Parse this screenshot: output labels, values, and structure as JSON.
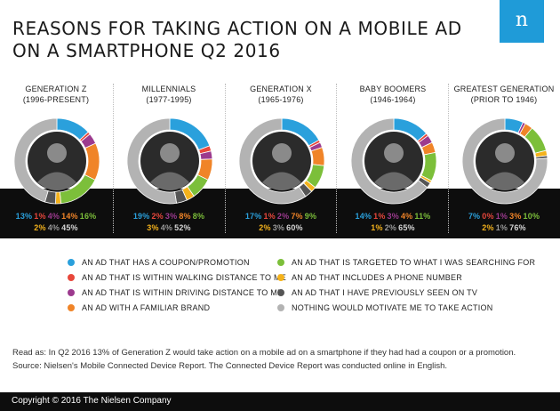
{
  "title": {
    "line1": "REASONS FOR TAKING ACTION ON A MOBILE AD",
    "line2": "ON A SMARTPHONE Q2 2016"
  },
  "logo_letter": "n",
  "colors": {
    "coupon": "#2aa0dc",
    "walking": "#e8473b",
    "driving": "#9c3a8e",
    "brand": "#f08428",
    "targeted": "#7cbf3a",
    "phone": "#f4b21c",
    "seen_tv": "#555555",
    "nothing": "#b3b3b3",
    "band": "#0d0d0d",
    "logo": "#1f9bd8"
  },
  "chart_data": {
    "type": "pie",
    "variant": "donut",
    "series_order": [
      "coupon",
      "walking",
      "driving",
      "brand",
      "targeted",
      "phone",
      "seen_tv",
      "nothing"
    ],
    "groups": [
      {
        "name": "GENERATION Z",
        "years": "(1996-PRESENT)",
        "values": {
          "coupon": 13,
          "walking": 1,
          "driving": 4,
          "brand": 14,
          "targeted": 16,
          "phone": 2,
          "seen_tv": 4,
          "nothing": 45
        },
        "labels": {
          "coupon": "13%",
          "walking": "1%",
          "driving": "4%",
          "brand": "14%",
          "targeted": "16%",
          "phone": "2%",
          "seen_tv": "4%",
          "nothing": "45%"
        }
      },
      {
        "name": "MILLENNIALS",
        "years": "(1977-1995)",
        "values": {
          "coupon": 19,
          "walking": 2,
          "driving": 3,
          "brand": 8,
          "targeted": 8,
          "phone": 3,
          "seen_tv": 4,
          "nothing": 52
        },
        "labels": {
          "coupon": "19%",
          "walking": "2%",
          "driving": "3%",
          "brand": "8%",
          "targeted": "8%",
          "phone": "3%",
          "seen_tv": "4%",
          "nothing": "52%"
        }
      },
      {
        "name": "GENERATION X",
        "years": "(1965-1976)",
        "values": {
          "coupon": 17,
          "walking": 1,
          "driving": 2,
          "brand": 7,
          "targeted": 9,
          "phone": 2,
          "seen_tv": 3,
          "nothing": 60
        },
        "labels": {
          "coupon": "17%",
          "walking": "1%",
          "driving": "2%",
          "brand": "7%",
          "targeted": "9%",
          "phone": "2%",
          "seen_tv": "3%",
          "nothing": "60%"
        }
      },
      {
        "name": "BABY BOOMERS",
        "years": "(1946-1964)",
        "values": {
          "coupon": 14,
          "walking": 1,
          "driving": 3,
          "brand": 4,
          "targeted": 11,
          "phone": 1,
          "seen_tv": 2,
          "nothing": 65
        },
        "labels": {
          "coupon": "14%",
          "walking": "1%",
          "driving": "3%",
          "brand": "4%",
          "targeted": "11%",
          "phone": "1%",
          "seen_tv": "2%",
          "nothing": "65%"
        }
      },
      {
        "name": "GREATEST GENERATION",
        "years": "(PRIOR TO 1946)",
        "values": {
          "coupon": 7,
          "walking": 0,
          "driving": 1,
          "brand": 3,
          "targeted": 10,
          "phone": 2,
          "seen_tv": 1,
          "nothing": 76
        },
        "labels": {
          "coupon": "7%",
          "walking": "0%",
          "driving": "1%",
          "brand": "3%",
          "targeted": "10%",
          "phone": "2%",
          "seen_tv": "1%",
          "nothing": "76%"
        }
      }
    ],
    "legend": [
      {
        "key": "coupon",
        "label": "AN AD THAT HAS A COUPON/PROMOTION"
      },
      {
        "key": "walking",
        "label": "AN AD THAT IS WITHIN WALKING DISTANCE TO ME"
      },
      {
        "key": "driving",
        "label": "AN AD THAT IS WITHIN DRIVING DISTANCE TO ME"
      },
      {
        "key": "brand",
        "label": "AN AD WITH A FAMILIAR BRAND"
      },
      {
        "key": "targeted",
        "label": "AN AD THAT IS TARGETED TO WHAT I WAS SEARCHING FOR"
      },
      {
        "key": "phone",
        "label": "AN AD THAT INCLUDES A PHONE NUMBER"
      },
      {
        "key": "seen_tv",
        "label": "AN AD THAT I HAVE PREVIOUSLY SEEN ON TV"
      },
      {
        "key": "nothing",
        "label": "NOTHING WOULD MOTIVATE ME TO TAKE ACTION"
      }
    ],
    "legend_placement": "bottom"
  },
  "notes": {
    "read_as": "Read as: In Q2 2016 13% of Generation Z would take action on a mobile ad on a smartphone if they had had a coupon or a promotion.",
    "source": "Source: Nielsen's Mobile Connected Device Report. The Connected Device Report was conducted online in English."
  },
  "footer": "Copyright © 2016 The Nielsen Company"
}
